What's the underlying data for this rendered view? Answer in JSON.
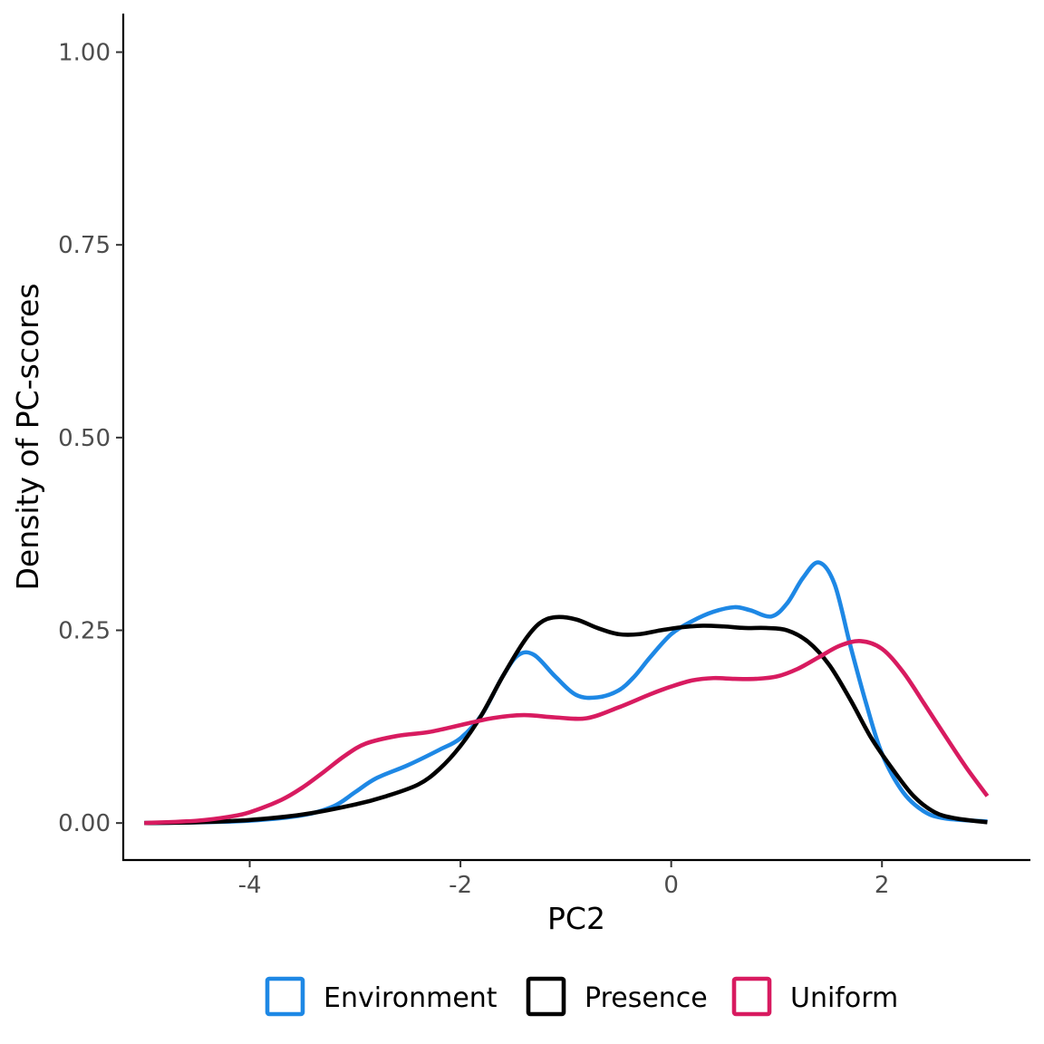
{
  "chart_data": {
    "type": "line",
    "title": "",
    "xlabel": "PC2",
    "ylabel": "Density of PC-scores",
    "xlim": [
      -5.2,
      3.4
    ],
    "ylim": [
      -0.048,
      1.05
    ],
    "x_ticks": [
      -4,
      -2,
      0,
      2
    ],
    "x_tick_labels": [
      "-4",
      "-2",
      "0",
      "2"
    ],
    "y_ticks": [
      0,
      0.25,
      0.5,
      0.75,
      1.0
    ],
    "y_tick_labels": [
      "0.00",
      "0.25",
      "0.50",
      "0.75",
      "1.00"
    ],
    "grid": false,
    "legend_position": "bottom",
    "series": [
      {
        "name": "Environment",
        "color": "#1E88E5",
        "x": [
          -5,
          -4.5,
          -4,
          -3.5,
          -3.2,
          -3.0,
          -2.8,
          -2.5,
          -2.2,
          -2.0,
          -1.8,
          -1.6,
          -1.45,
          -1.3,
          -1.1,
          -0.9,
          -0.7,
          -0.5,
          -0.35,
          -0.2,
          0,
          0.2,
          0.4,
          0.6,
          0.75,
          0.95,
          1.1,
          1.25,
          1.4,
          1.55,
          1.7,
          1.85,
          2.0,
          2.2,
          2.4,
          2.6,
          3.0
        ],
        "y": [
          0.0,
          0.001,
          0.003,
          0.01,
          0.022,
          0.04,
          0.058,
          0.075,
          0.095,
          0.11,
          0.14,
          0.19,
          0.218,
          0.218,
          0.19,
          0.166,
          0.163,
          0.172,
          0.19,
          0.215,
          0.245,
          0.262,
          0.274,
          0.28,
          0.276,
          0.268,
          0.285,
          0.318,
          0.338,
          0.31,
          0.23,
          0.155,
          0.09,
          0.04,
          0.015,
          0.006,
          0.002
        ]
      },
      {
        "name": "Presence",
        "color": "#000000",
        "x": [
          -5,
          -4.5,
          -4,
          -3.5,
          -3.0,
          -2.7,
          -2.4,
          -2.2,
          -2.0,
          -1.8,
          -1.6,
          -1.4,
          -1.25,
          -1.1,
          -0.9,
          -0.7,
          -0.5,
          -0.3,
          -0.1,
          0.1,
          0.3,
          0.5,
          0.7,
          0.9,
          1.1,
          1.3,
          1.5,
          1.7,
          1.9,
          2.1,
          2.3,
          2.5,
          2.7,
          3.0
        ],
        "y": [
          0.0,
          0.001,
          0.004,
          0.011,
          0.024,
          0.035,
          0.05,
          0.07,
          0.1,
          0.14,
          0.19,
          0.235,
          0.259,
          0.267,
          0.264,
          0.253,
          0.245,
          0.245,
          0.25,
          0.254,
          0.256,
          0.255,
          0.253,
          0.253,
          0.25,
          0.235,
          0.205,
          0.16,
          0.11,
          0.07,
          0.035,
          0.014,
          0.006,
          0.001
        ]
      },
      {
        "name": "Uniform",
        "color": "#D81B60",
        "x": [
          -5,
          -4.5,
          -4.2,
          -4,
          -3.7,
          -3.5,
          -3.3,
          -3.1,
          -2.9,
          -2.6,
          -2.3,
          -2.0,
          -1.7,
          -1.4,
          -1.1,
          -0.8,
          -0.5,
          -0.2,
          0.0,
          0.2,
          0.4,
          0.6,
          0.8,
          1.0,
          1.2,
          1.4,
          1.6,
          1.8,
          2.0,
          2.2,
          2.4,
          2.6,
          2.8,
          3.0
        ],
        "y": [
          0.0,
          0.003,
          0.008,
          0.014,
          0.03,
          0.046,
          0.066,
          0.087,
          0.103,
          0.113,
          0.118,
          0.127,
          0.136,
          0.14,
          0.137,
          0.136,
          0.15,
          0.167,
          0.177,
          0.185,
          0.188,
          0.187,
          0.187,
          0.19,
          0.2,
          0.215,
          0.23,
          0.236,
          0.226,
          0.196,
          0.155,
          0.113,
          0.072,
          0.035
        ]
      }
    ]
  }
}
